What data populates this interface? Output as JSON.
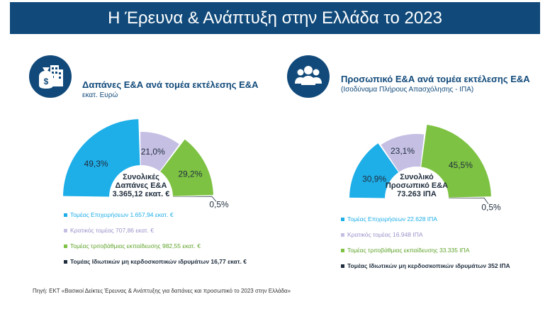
{
  "banner": {
    "title": "Η Έρευνα & Ανάπτυξη στην Ελλάδα το 2023"
  },
  "colors": {
    "business": "#1eaee8",
    "government": "#c5bfe4",
    "higher_ed": "#7dc242",
    "nonprofit": "#1f2d3d",
    "banner": "#114a7a"
  },
  "left": {
    "icon": "money-bag-buildings-icon",
    "title": "Δαπάνες Ε&Α ανά τομέα εκτέλεσης Ε&Α",
    "subtitle": "εκατ. Ευρώ",
    "center_line1": "Συνολικές",
    "center_line2": "Δαπάνες Ε&Α",
    "center_line3": "3.365,12 εκατ. €",
    "legend": [
      "Τομέας Επιχειρήσεων 1.657,94 εκατ. €",
      "Κρατικός τομέας 707,86 εκατ. €",
      "Τομέας τριτοβάθμιας εκπαίδευσης 982,55 εκατ. €",
      "Τομέας Ιδιωτικών μη κερδοσκοπικών ιδρυμάτων 16,77 εκατ. €"
    ]
  },
  "right": {
    "icon": "people-group-icon",
    "title": "Προσωπικό Ε&Α ανά τομέα εκτέλεσης Ε&Α",
    "subtitle": "(Ισοδύναμα Πλήρους Απασχόλησης - ΙΠΑ)",
    "center_line1": "Συνολικό",
    "center_line2": "Προσωπικό Ε&Α",
    "center_line3": "73.263 ΙΠΑ",
    "legend": [
      "Τομέας Επιχειρήσεων 22.628 ΙΠΑ",
      "Κρατικός τομέας 16.948 ΙΠΑ",
      "Τομέας τριτοβάθμιας εκπαίδευσης 33.335 ΙΠΑ",
      "Τομέας Ιδιωτικών μη κερδοσκοπικών ιδρυμάτων 352 ΙΠΑ"
    ]
  },
  "source": "Πηγή: ΕΚΤ «Βασικοί Δείκτες Έρευνας & Ανάπτυξης για δαπάνες και προσωπικό το 2023 στην Ελλάδα»",
  "chart_data": [
    {
      "type": "pie",
      "title": "Δαπάνες Ε&Α ανά τομέα εκτέλεσης Ε&Α",
      "categories": [
        "Τομέας Επιχειρήσεων",
        "Κρατικός τομέας",
        "Τομέας τριτοβάθμιας εκπαίδευσης",
        "Τομέας Ιδιωτικών μη κερδοσκοπικών ιδρυμάτων"
      ],
      "values": [
        49.3,
        21.0,
        29.2,
        0.5
      ],
      "labels": [
        "49,3%",
        "21,0%",
        "29,2%",
        "0,5%"
      ]
    },
    {
      "type": "pie",
      "title": "Προσωπικό Ε&Α ανά τομέα εκτέλεσης Ε&Α",
      "categories": [
        "Τομέας Επιχειρήσεων",
        "Κρατικός τομέας",
        "Τομέας τριτοβάθμιας εκπαίδευσης",
        "Τομέας Ιδιωτικών μη κερδοσκοπικών ιδρυμάτων"
      ],
      "values": [
        30.9,
        23.1,
        45.5,
        0.5
      ],
      "labels": [
        "30,9%",
        "23,1%",
        "45,5%",
        "0,5%"
      ]
    }
  ]
}
